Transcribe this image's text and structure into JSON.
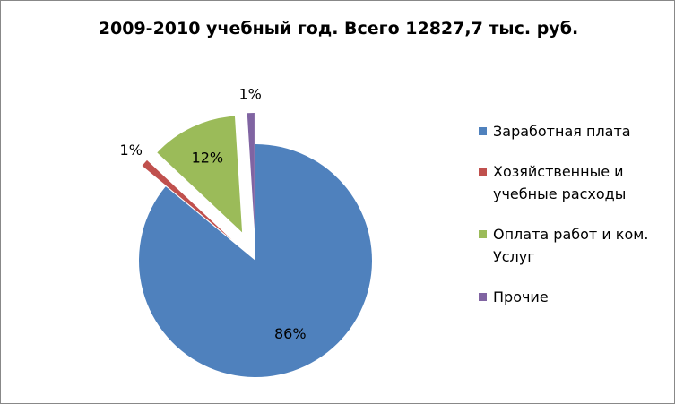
{
  "chart_data": {
    "type": "pie",
    "title": "2009-2010 учебный год. Всего 12827,7 тыс. руб.",
    "categories": [
      "Заработная плата",
      "Хозяйственные и учебные расходы",
      "Оплата работ и ком. Услуг",
      "Прочие"
    ],
    "values": [
      86,
      1,
      12,
      1
    ],
    "value_labels": [
      "86%",
      "1%",
      "12%",
      "1%"
    ],
    "colors": [
      "#4f81bd",
      "#c0504d",
      "#9bbb59",
      "#8064a2"
    ],
    "legend": "right"
  }
}
